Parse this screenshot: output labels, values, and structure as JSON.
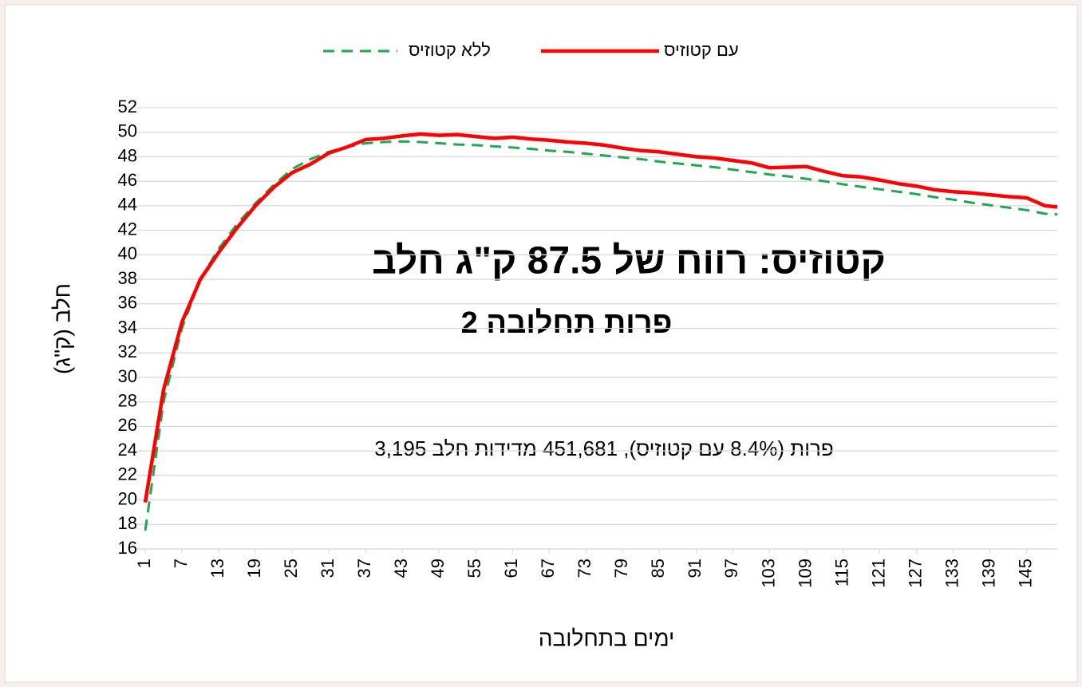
{
  "chart_data": {
    "type": "line",
    "title": "קטוזיס: רווח של 87.5 ק\"ג חלב",
    "subtitle": "פרות תחלובה 2",
    "annotation": "3,195 פרות (8.4% עם קטוזיס), 451,681 מדידות חלב",
    "x_label": "ימים בתחלובה",
    "y_label": "חלב (ק\"ג)",
    "x": [
      1,
      4,
      7,
      10,
      13,
      16,
      19,
      22,
      25,
      28,
      31,
      34,
      37,
      40,
      43,
      46,
      49,
      52,
      55,
      58,
      61,
      64,
      67,
      70,
      73,
      76,
      79,
      82,
      85,
      88,
      91,
      94,
      97,
      100,
      103,
      106,
      109,
      112,
      115,
      118,
      121,
      124,
      127,
      130,
      133,
      136,
      139,
      142,
      145,
      148,
      150
    ],
    "series": [
      {
        "name": "עם קטוזיס",
        "color": "#ff0000",
        "dash": false,
        "values": [
          19.8,
          29,
          34.5,
          38,
          40.2,
          42.2,
          44,
          45.5,
          46.7,
          47.4,
          48.3,
          48.8,
          49.4,
          49.5,
          49.7,
          49.85,
          49.75,
          49.8,
          49.65,
          49.5,
          49.6,
          49.45,
          49.35,
          49.2,
          49.1,
          48.95,
          48.7,
          48.5,
          48.4,
          48.2,
          48.0,
          47.9,
          47.7,
          47.5,
          47.1,
          47.15,
          47.2,
          46.8,
          46.45,
          46.35,
          46.1,
          45.8,
          45.6,
          45.3,
          45.15,
          45.05,
          44.9,
          44.75,
          44.65,
          44.0,
          43.9
        ]
      },
      {
        "name": "ללא קטוזיס",
        "color": "#1fa84f",
        "dash": true,
        "values": [
          17.5,
          28,
          34,
          38,
          40.5,
          42.5,
          44.2,
          45.7,
          47,
          47.8,
          48.4,
          48.8,
          49.1,
          49.2,
          49.25,
          49.2,
          49.1,
          49.0,
          48.95,
          48.85,
          48.75,
          48.65,
          48.5,
          48.4,
          48.25,
          48.1,
          47.95,
          47.8,
          47.6,
          47.45,
          47.3,
          47.15,
          46.95,
          46.75,
          46.55,
          46.4,
          46.2,
          46.0,
          45.75,
          45.55,
          45.35,
          45.15,
          44.95,
          44.7,
          44.5,
          44.25,
          44.05,
          43.85,
          43.65,
          43.35,
          43.3
        ]
      }
    ],
    "xlim": [
      1,
      150
    ],
    "xticks": [
      1,
      7,
      13,
      19,
      25,
      31,
      37,
      43,
      49,
      55,
      61,
      67,
      73,
      79,
      85,
      91,
      97,
      103,
      109,
      115,
      121,
      127,
      133,
      139,
      145
    ],
    "ylim": [
      16,
      52
    ],
    "yticks": [
      16,
      18,
      20,
      22,
      24,
      26,
      28,
      30,
      32,
      34,
      36,
      38,
      40,
      42,
      44,
      46,
      48,
      50,
      52
    ],
    "grid": true
  }
}
